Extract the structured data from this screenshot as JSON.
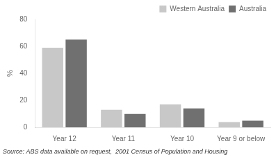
{
  "chart_data": {
    "type": "bar",
    "categories": [
      "Year 12",
      "Year 11",
      "Year 10",
      "Year 9 or below"
    ],
    "series": [
      {
        "name": "Western Australia",
        "color": "#c8c8c8",
        "values": [
          59,
          13,
          17,
          4
        ]
      },
      {
        "name": "Australia",
        "color": "#707070",
        "values": [
          65,
          10,
          14,
          5
        ]
      }
    ],
    "ylabel": "%",
    "ylim": [
      0,
      80
    ],
    "yticks": [
      0,
      20,
      40,
      60,
      80
    ],
    "grid": false,
    "legend": "upper right",
    "annotations": [
      "Source: ABS data available on request,  2001 Census of Population and Housing"
    ]
  }
}
